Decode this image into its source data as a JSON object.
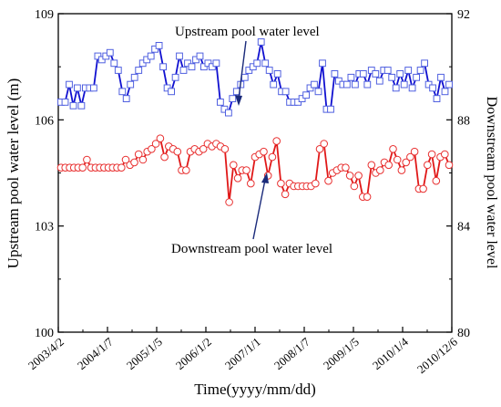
{
  "chart_data": {
    "type": "line",
    "title": "",
    "xlabel": "Time(yyyy/mm/dd)",
    "ylabel_left": "Upstream pool water level (m)",
    "ylabel_right": "Downstream pool water level",
    "x_tick_labels": [
      "2003/4/2",
      "2004/1/7",
      "2005/1/5",
      "2006/1/2",
      "2007/1/1",
      "2008/1/7",
      "2009/1/5",
      "2010/1/4",
      "2010/12/6"
    ],
    "left_ticks": [
      "100",
      "103",
      "106",
      "109"
    ],
    "right_ticks": [
      "80",
      "84",
      "88",
      "92"
    ],
    "ylim_left": [
      100,
      109
    ],
    "ylim_right": [
      80,
      92
    ],
    "grid": false,
    "annotations": [
      {
        "text": "Upstream pool water level"
      },
      {
        "text": "Downstream pool water level"
      }
    ],
    "series": [
      {
        "name": "Upstream pool water level",
        "axis": "left",
        "color": "#1010d0",
        "marker": "square",
        "values": [
          106.5,
          106.5,
          107.0,
          106.4,
          106.9,
          106.4,
          106.9,
          106.9,
          106.9,
          107.8,
          107.7,
          107.8,
          107.9,
          107.6,
          107.4,
          106.8,
          106.6,
          107.0,
          107.2,
          107.4,
          107.6,
          107.7,
          107.8,
          108.0,
          108.1,
          107.5,
          106.9,
          106.8,
          107.2,
          107.8,
          107.4,
          107.6,
          107.5,
          107.7,
          107.8,
          107.5,
          107.6,
          107.5,
          107.6,
          106.5,
          106.3,
          106.2,
          106.6,
          106.8,
          107.0,
          107.2,
          107.4,
          107.5,
          107.6,
          108.2,
          107.6,
          107.4,
          107.0,
          107.3,
          106.8,
          106.8,
          106.5,
          106.5,
          106.5,
          106.6,
          106.7,
          106.9,
          107.0,
          106.8,
          107.6,
          106.3,
          106.3,
          107.3,
          107.1,
          107.0,
          107.0,
          107.2,
          107.0,
          107.3,
          107.3,
          107.0,
          107.4,
          107.3,
          107.1,
          107.4,
          107.4,
          107.2,
          106.9,
          107.3,
          107.0,
          107.4,
          106.9,
          107.2,
          107.4,
          107.6,
          107.0,
          106.9,
          106.6,
          107.2,
          106.8,
          107.0
        ]
      },
      {
        "name": "Downstream pool water level",
        "axis": "right",
        "color": "#e01818",
        "marker": "circle",
        "values": [
          86.2,
          86.2,
          86.2,
          86.2,
          86.2,
          86.2,
          86.5,
          86.2,
          86.2,
          86.2,
          86.2,
          86.2,
          86.2,
          86.2,
          86.2,
          86.5,
          86.3,
          86.4,
          86.7,
          86.5,
          86.8,
          86.9,
          87.1,
          87.3,
          86.6,
          87.0,
          86.9,
          86.8,
          86.1,
          86.1,
          86.8,
          86.9,
          86.8,
          86.9,
          87.1,
          87.0,
          87.1,
          87.0,
          86.9,
          84.9,
          86.3,
          85.8,
          86.1,
          86.1,
          85.6,
          86.6,
          86.7,
          86.8,
          85.9,
          86.6,
          87.2,
          85.6,
          85.2,
          85.6,
          85.5,
          85.5,
          85.5,
          85.5,
          85.5,
          85.6,
          86.9,
          87.1,
          85.7,
          86.0,
          86.1,
          86.2,
          86.2,
          85.9,
          85.5,
          85.9,
          85.1,
          85.1,
          86.3,
          86.0,
          86.1,
          86.4,
          86.3,
          86.9,
          86.5,
          86.1,
          86.4,
          86.6,
          86.8,
          85.4,
          85.4,
          86.3,
          86.7,
          85.7,
          86.6,
          86.7,
          86.3
        ]
      }
    ]
  }
}
